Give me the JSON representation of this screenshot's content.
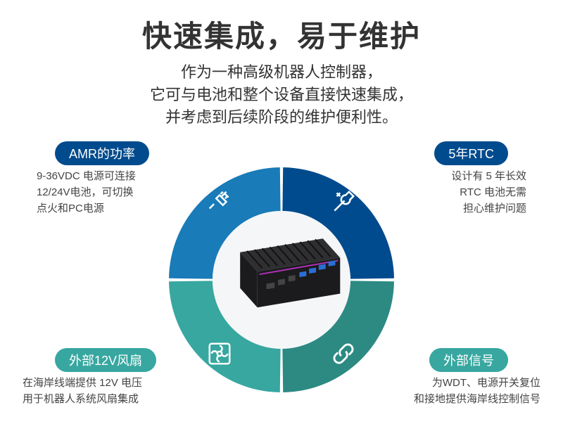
{
  "header": {
    "title": "快速集成，易于维护",
    "subtitle_line1": "作为一种高级机器人控制器，",
    "subtitle_line2": "它可与电池和整个设备直接快速集成，",
    "subtitle_line3": "并考虑到后续阶段的维护便利性。"
  },
  "ring": {
    "outer_radius": 160,
    "inner_radius": 98,
    "gap_deg": 0.8,
    "colors": {
      "top_left": "#197bb8",
      "top_right": "#004b8d",
      "bottom_left": "#37a7a0",
      "bottom_right": "#2c8a83"
    },
    "inner_bg": "#f5f6f7"
  },
  "device": {
    "body_color": "#1b1b1d",
    "top_color": "#2f2f31",
    "accent_color": "#b030b8",
    "port_blue": "#2b6fd6"
  },
  "quadrants": {
    "top_left": {
      "icon": "plug-icon",
      "badge": "AMR的功率",
      "badge_bg": "#004b8d",
      "desc_line1": "9-36VDC 电源可连接",
      "desc_line2": "12/24V电池，可切换",
      "desc_line3": "点火和PC电源"
    },
    "top_right": {
      "icon": "wrench-icon",
      "badge": "5年RTC",
      "badge_bg": "#004b8d",
      "desc_line1": "设计有 5 年长效",
      "desc_line2": "RTC 电池无需",
      "desc_line3": "担心维护问题"
    },
    "bottom_left": {
      "icon": "fan-icon",
      "badge": "外部12V风扇",
      "badge_bg": "#37a7a0",
      "desc_line1": "在海岸线端提供 12V 电压",
      "desc_line2": "用于机器人系统风扇集成"
    },
    "bottom_right": {
      "icon": "link-icon",
      "badge": "外部信号",
      "badge_bg": "#37a7a0",
      "desc_line1": "为WDT、电源开关复位",
      "desc_line2": "和接地提供海岸线控制信号"
    }
  },
  "typography": {
    "title_fontsize": 42,
    "subtitle_fontsize": 22,
    "badge_fontsize": 18,
    "desc_fontsize": 15,
    "text_color": "#333333",
    "desc_color": "#444444",
    "badge_text_color": "#ffffff"
  }
}
